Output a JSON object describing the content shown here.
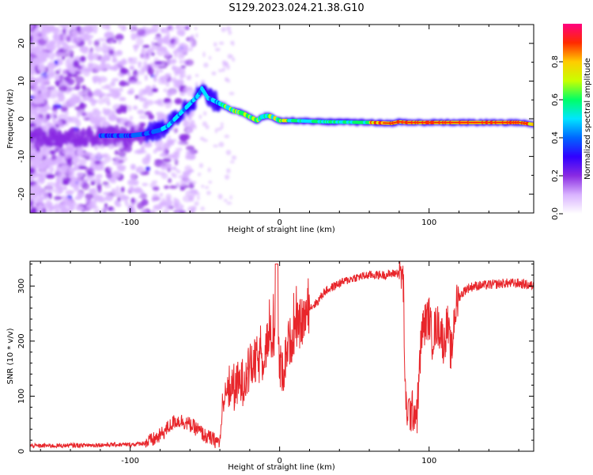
{
  "title": "S129.2023.024.21.38.G10",
  "colors": {
    "snr_line": "#e8262b",
    "colormap": [
      "#ffffff",
      "#d9b3ff",
      "#8a2be2",
      "#3000ff",
      "#0066ff",
      "#00e5ff",
      "#00ff66",
      "#c8ff00",
      "#ffcc00",
      "#ff2a00",
      "#ff0080"
    ]
  },
  "chart_data": [
    {
      "type": "heatmap",
      "xlabel": "Height of straight line (km)",
      "ylabel": "Frequency (Hz)",
      "xlim": [
        -167,
        170
      ],
      "ylim": [
        -25,
        25
      ],
      "x_ticks": [
        -100,
        0,
        100
      ],
      "x_tick_labels": [
        "-100",
        "0",
        "100"
      ],
      "y_ticks": [
        -20,
        -10,
        0,
        10,
        20
      ],
      "y_tick_labels": [
        "-20",
        "-10",
        "0",
        "10",
        "20"
      ],
      "ridge": {
        "x": [
          -160,
          -140,
          -120,
          -100,
          -90,
          -80,
          -75,
          -70,
          -65,
          -60,
          -55,
          -52,
          -48,
          -45,
          -40,
          -35,
          -30,
          -25,
          -20,
          -15,
          -12,
          -8,
          -5,
          0,
          10,
          30,
          60,
          75,
          80,
          85,
          100,
          130,
          160,
          170
        ],
        "y": [
          -5,
          -4.8,
          -4.5,
          -4.5,
          -4,
          -3,
          -2,
          0,
          2,
          4,
          6,
          8,
          5.5,
          5,
          4,
          3,
          2,
          1.5,
          0.5,
          -0.5,
          0.5,
          0.8,
          0.5,
          -0.5,
          -0.5,
          -0.8,
          -1,
          -1.2,
          -0.8,
          -1,
          -1,
          -1,
          -1,
          -1.5
        ]
      },
      "colorbar": {
        "label": "Normalized spectral amplitude",
        "range": [
          0,
          1
        ],
        "ticks": [
          0.0,
          0.2,
          0.4,
          0.6,
          0.8
        ],
        "tick_labels": [
          "0.0",
          "0.2",
          "0.4",
          "0.6",
          "0.8"
        ]
      }
    },
    {
      "type": "line",
      "xlabel": "Height of straight line (km)",
      "ylabel": "SNR (10 * v/v)",
      "xlim": [
        -167,
        170
      ],
      "ylim": [
        0,
        345
      ],
      "x_ticks": [
        -100,
        0,
        100
      ],
      "x_tick_labels": [
        "-100",
        "0",
        "100"
      ],
      "y_ticks": [
        0,
        100,
        200,
        300
      ],
      "y_tick_labels": [
        "0",
        "100",
        "200",
        "300"
      ],
      "series": [
        {
          "x": [
            -167,
            -150,
            -130,
            -110,
            -100,
            -90,
            -85,
            -80,
            -75,
            -70,
            -65,
            -60,
            -55,
            -50,
            -45,
            -42,
            -40,
            -38,
            -35,
            -32,
            -30,
            -25,
            -20,
            -15,
            -12,
            -10,
            -7,
            -5,
            -3,
            -2,
            0,
            3,
            5,
            8,
            10,
            15,
            20,
            25,
            30,
            40,
            50,
            60,
            70,
            75,
            80,
            82,
            83,
            84,
            85,
            88,
            90,
            92,
            95,
            97,
            99,
            100,
            102,
            105,
            108,
            110,
            112,
            115,
            117,
            120,
            125,
            130,
            140,
            150,
            160,
            170
          ],
          "y": [
            10,
            10,
            11,
            12,
            12,
            15,
            20,
            28,
            42,
            55,
            55,
            48,
            40,
            28,
            22,
            18,
            16,
            80,
            110,
            120,
            115,
            125,
            150,
            165,
            165,
            185,
            205,
            205,
            215,
            235,
            150,
            150,
            190,
            205,
            220,
            235,
            260,
            270,
            290,
            305,
            315,
            320,
            320,
            322,
            325,
            320,
            290,
            95,
            75,
            70,
            75,
            70,
            215,
            230,
            240,
            245,
            205,
            230,
            220,
            190,
            235,
            170,
            250,
            280,
            295,
            300,
            302,
            305,
            305,
            300
          ]
        }
      ]
    }
  ]
}
